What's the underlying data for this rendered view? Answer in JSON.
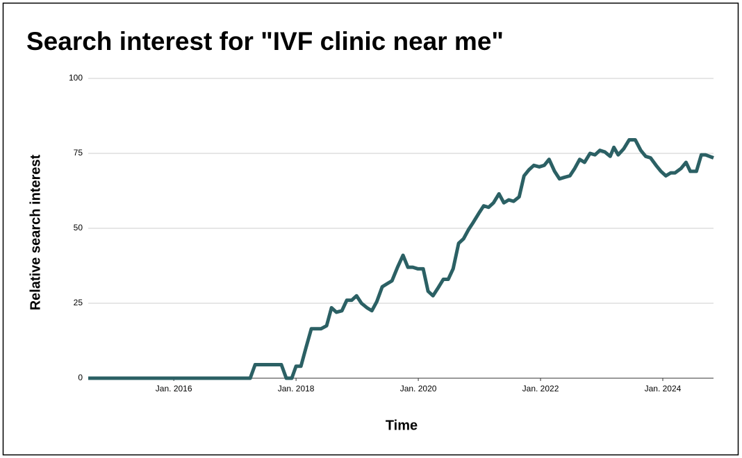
{
  "chart_data": {
    "type": "line",
    "title": "Search interest for \"IVF clinic near me\"",
    "x_label": "Time",
    "y_label": "Relative search interest",
    "xlim": [
      2014.6,
      2024.83
    ],
    "xticks": [
      {
        "value": 2016,
        "label": "Jan. 2016"
      },
      {
        "value": 2018,
        "label": "Jan. 2018"
      },
      {
        "value": 2020,
        "label": "Jan. 2020"
      },
      {
        "value": 2022,
        "label": "Jan. 2022"
      },
      {
        "value": 2024,
        "label": "Jan. 2024"
      }
    ],
    "ylim": [
      0,
      100
    ],
    "yticks": [
      0,
      25,
      50,
      75,
      100
    ],
    "grid": true,
    "x": [
      2014.6,
      2017.25,
      2017.33,
      2017.76,
      2017.84,
      2017.93,
      2018.0,
      2018.08,
      2018.16,
      2018.25,
      2018.41,
      2018.5,
      2018.58,
      2018.66,
      2018.75,
      2018.83,
      2018.91,
      2018.99,
      2019.07,
      2019.16,
      2019.24,
      2019.32,
      2019.41,
      2019.49,
      2019.57,
      2019.66,
      2019.75,
      2019.83,
      2019.91,
      2019.99,
      2020.08,
      2020.16,
      2020.24,
      2020.32,
      2020.41,
      2020.49,
      2020.57,
      2020.66,
      2020.74,
      2020.82,
      2020.9,
      2020.99,
      2021.07,
      2021.15,
      2021.23,
      2021.32,
      2021.4,
      2021.48,
      2021.56,
      2021.65,
      2021.73,
      2021.81,
      2021.89,
      2021.98,
      2022.06,
      2022.14,
      2022.23,
      2022.31,
      2022.39,
      2022.48,
      2022.56,
      2022.64,
      2022.72,
      2022.81,
      2022.89,
      2022.97,
      2023.05,
      2023.14,
      2023.2,
      2023.27,
      2023.36,
      2023.45,
      2023.55,
      2023.64,
      2023.72,
      2023.8,
      2023.89,
      2023.97,
      2024.05,
      2024.13,
      2024.2,
      2024.3,
      2024.38,
      2024.45,
      2024.55,
      2024.63,
      2024.7,
      2024.83
    ],
    "series": [
      {
        "color": "#2b6064",
        "values": [
          0,
          0,
          4.5,
          4.5,
          0,
          0,
          4,
          4,
          10,
          16.5,
          16.5,
          17.5,
          23.5,
          22,
          22.5,
          26,
          26,
          27.5,
          25,
          23.5,
          22.5,
          25.5,
          30.5,
          31.5,
          32.5,
          37,
          41,
          37,
          37,
          36.5,
          36.5,
          29,
          27.5,
          30,
          33,
          33,
          36.5,
          45,
          46.5,
          49.5,
          52,
          55,
          57.5,
          57,
          58.5,
          61.5,
          58.5,
          59.5,
          59,
          60.5,
          67.5,
          69.5,
          71,
          70.5,
          71,
          73,
          69,
          66.5,
          67,
          67.5,
          70,
          73,
          72,
          75,
          74.5,
          76,
          75.5,
          74,
          77,
          74.5,
          76.5,
          79.5,
          79.5,
          76,
          74,
          73.5,
          71,
          69,
          67.5,
          68.5,
          68.5,
          70,
          72,
          69,
          69,
          74.5,
          74.5,
          73.5
        ]
      }
    ]
  }
}
